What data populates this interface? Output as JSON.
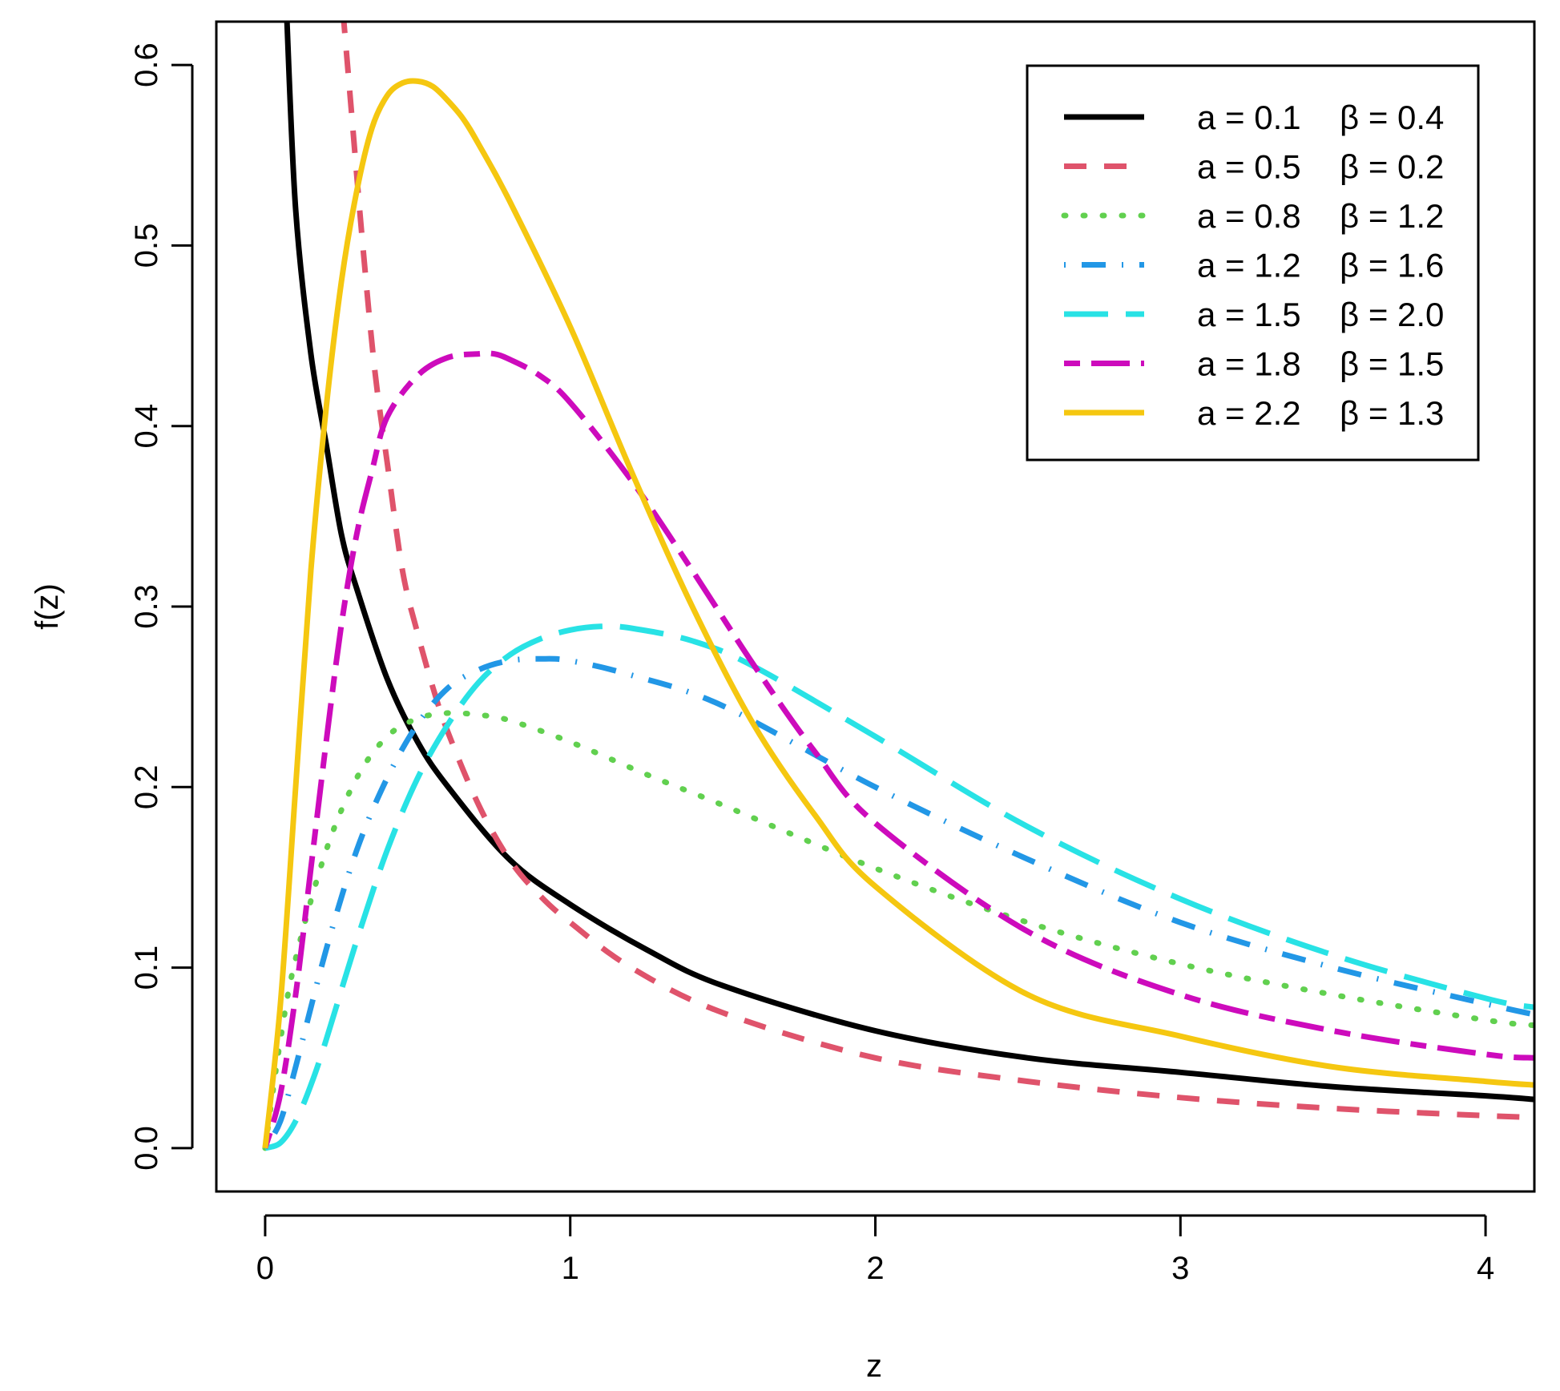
{
  "chart_data": {
    "type": "line",
    "title": "",
    "xlabel": "z",
    "ylabel": "f(z)",
    "xlim": [
      -0.16,
      4.16
    ],
    "ylim": [
      -0.024,
      0.624
    ],
    "x_ticks": [
      0,
      1,
      2,
      3,
      4
    ],
    "x_tick_labels": [
      "0",
      "1",
      "2",
      "3",
      "4"
    ],
    "y_ticks": [
      0.0,
      0.1,
      0.2,
      0.3,
      0.4,
      0.5,
      0.6
    ],
    "y_tick_labels": [
      "0.0",
      "0.1",
      "0.2",
      "0.3",
      "0.4",
      "0.5",
      "0.6"
    ],
    "legend_position": "top-right",
    "series": [
      {
        "name": "a = 0.1  β = 0.4",
        "a_label": "a = 0.1",
        "b_label": "β = 0.4",
        "color": "#000000",
        "dash": "solid",
        "x": [
          0.07,
          0.1,
          0.15,
          0.2,
          0.25,
          0.3,
          0.4,
          0.5,
          0.6,
          0.8,
          1.0,
          1.25,
          1.5,
          2.0,
          2.5,
          3.0,
          3.5,
          4.0,
          4.16
        ],
        "y": [
          0.63,
          0.52,
          0.44,
          0.39,
          0.34,
          0.31,
          0.26,
          0.225,
          0.2,
          0.16,
          0.135,
          0.11,
          0.09,
          0.065,
          0.05,
          0.042,
          0.034,
          0.029,
          0.027
        ]
      },
      {
        "name": "a = 0.5  β = 0.2",
        "a_label": "a = 0.5",
        "b_label": "β = 0.2",
        "color": "#DF536B",
        "dash": "dashed",
        "x": [
          0.255,
          0.28,
          0.32,
          0.36,
          0.4,
          0.45,
          0.5,
          0.55,
          0.6,
          0.7,
          0.8,
          0.9,
          1.0,
          1.2,
          1.5,
          2.0,
          2.5,
          3.0,
          3.5,
          4.0,
          4.16
        ],
        "y": [
          0.63,
          0.58,
          0.5,
          0.43,
          0.38,
          0.32,
          0.285,
          0.255,
          0.23,
          0.19,
          0.16,
          0.14,
          0.125,
          0.1,
          0.075,
          0.05,
          0.037,
          0.028,
          0.022,
          0.018,
          0.017
        ]
      },
      {
        "name": "a = 0.8  β = 1.2",
        "a_label": "a = 0.8",
        "b_label": "β = 1.2",
        "color": "#61D04F",
        "dash": "dotted",
        "x": [
          0.0,
          0.05,
          0.1,
          0.2,
          0.3,
          0.4,
          0.5,
          0.6,
          0.7,
          0.8,
          1.0,
          1.25,
          1.5,
          2.0,
          2.5,
          3.0,
          3.5,
          4.0,
          4.16
        ],
        "y": [
          0.0,
          0.06,
          0.105,
          0.165,
          0.205,
          0.228,
          0.238,
          0.241,
          0.24,
          0.237,
          0.225,
          0.207,
          0.19,
          0.155,
          0.125,
          0.102,
          0.085,
          0.071,
          0.068
        ]
      },
      {
        "name": "a = 1.2  β = 1.6",
        "a_label": "a = 1.2",
        "b_label": "β = 1.6",
        "color": "#2297E6",
        "dash": "dashdot",
        "x": [
          0.0,
          0.05,
          0.1,
          0.2,
          0.3,
          0.4,
          0.5,
          0.6,
          0.7,
          0.8,
          0.9,
          1.0,
          1.2,
          1.5,
          2.0,
          2.5,
          3.0,
          3.5,
          4.0,
          4.16
        ],
        "y": [
          0.0,
          0.015,
          0.045,
          0.11,
          0.165,
          0.205,
          0.235,
          0.255,
          0.265,
          0.27,
          0.271,
          0.27,
          0.262,
          0.245,
          0.2,
          0.16,
          0.125,
          0.1,
          0.08,
          0.074
        ]
      },
      {
        "name": "a = 1.5  β = 2.0",
        "a_label": "a = 1.5",
        "b_label": "β = 2.0",
        "color": "#28E2E5",
        "dash": "longdash",
        "x": [
          0.0,
          0.05,
          0.1,
          0.15,
          0.2,
          0.3,
          0.4,
          0.5,
          0.6,
          0.7,
          0.8,
          0.9,
          1.0,
          1.1,
          1.2,
          1.4,
          1.6,
          2.0,
          2.5,
          3.0,
          3.5,
          4.0,
          4.16
        ],
        "y": [
          0.0,
          0.003,
          0.015,
          0.035,
          0.06,
          0.115,
          0.165,
          0.205,
          0.235,
          0.258,
          0.273,
          0.282,
          0.287,
          0.289,
          0.288,
          0.281,
          0.267,
          0.228,
          0.178,
          0.138,
          0.107,
          0.083,
          0.078
        ]
      },
      {
        "name": "a = 1.8  β = 1.5",
        "a_label": "a = 1.8",
        "b_label": "β = 1.5",
        "color": "#CD0BBC",
        "dash": "twodash",
        "x": [
          0.0,
          0.05,
          0.1,
          0.15,
          0.2,
          0.25,
          0.3,
          0.35,
          0.4,
          0.5,
          0.6,
          0.7,
          0.75,
          0.8,
          0.9,
          1.0,
          1.2,
          1.4,
          1.6,
          1.8,
          2.0,
          2.5,
          3.0,
          3.5,
          4.0,
          4.16
        ],
        "y": [
          0.0,
          0.03,
          0.085,
          0.155,
          0.225,
          0.29,
          0.34,
          0.375,
          0.405,
          0.428,
          0.438,
          0.44,
          0.44,
          0.437,
          0.428,
          0.413,
          0.37,
          0.32,
          0.268,
          0.22,
          0.18,
          0.12,
          0.085,
          0.065,
          0.052,
          0.05
        ]
      },
      {
        "name": "a = 2.2  β = 1.3",
        "a_label": "a = 2.2",
        "b_label": "β = 1.3",
        "color": "#F5C710",
        "dash": "solid",
        "x": [
          0.0,
          0.05,
          0.1,
          0.15,
          0.2,
          0.25,
          0.3,
          0.35,
          0.4,
          0.45,
          0.5,
          0.55,
          0.6,
          0.65,
          0.7,
          0.8,
          1.0,
          1.2,
          1.4,
          1.6,
          1.8,
          2.0,
          2.5,
          3.0,
          3.5,
          4.0,
          4.16
        ],
        "y": [
          0.0,
          0.08,
          0.2,
          0.32,
          0.41,
          0.48,
          0.53,
          0.565,
          0.583,
          0.59,
          0.591,
          0.588,
          0.58,
          0.57,
          0.556,
          0.525,
          0.455,
          0.375,
          0.3,
          0.235,
          0.185,
          0.145,
          0.085,
          0.062,
          0.045,
          0.037,
          0.035
        ]
      }
    ]
  }
}
